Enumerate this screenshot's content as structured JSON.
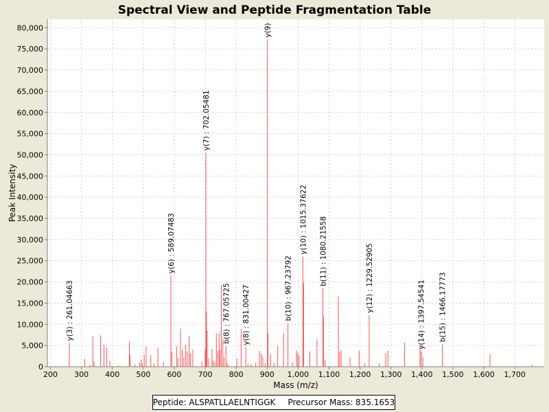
{
  "chart_data": {
    "type": "bar",
    "title": "Spectral View and Peptide Fragmentation Table",
    "xlabel": "Mass (m/z)",
    "ylabel": "Peak Intensity",
    "xlim": [
      190,
      1795
    ],
    "ylim": [
      0,
      82000
    ],
    "xticks": [
      200,
      300,
      400,
      500,
      600,
      700,
      800,
      900,
      1000,
      1100,
      1200,
      1300,
      1400,
      1500,
      1600,
      1700,
      1800
    ],
    "xtick_labels": [
      "200",
      "300",
      "400",
      "500",
      "600",
      "700",
      "800",
      "900",
      "1,000",
      "1,100",
      "1,200",
      "1,300",
      "1,400",
      "1,500",
      "1,600",
      "1,700",
      "1,800"
    ],
    "yticks": [
      0,
      5000,
      10000,
      15000,
      20000,
      25000,
      30000,
      35000,
      40000,
      45000,
      50000,
      55000,
      60000,
      65000,
      70000,
      75000,
      80000
    ],
    "ytick_labels": [
      "0",
      "5,000",
      "10,000",
      "15,000",
      "20,000",
      "25,000",
      "30,000",
      "35,000",
      "40,000",
      "45,000",
      "50,000",
      "55,000",
      "60,000",
      "65,000",
      "70,000",
      "75,000",
      "80,000"
    ],
    "grid": true,
    "peaks": [
      [
        261.0,
        5600
      ],
      [
        311.0,
        1800
      ],
      [
        328.0,
        400
      ],
      [
        337.0,
        7200
      ],
      [
        341.0,
        1200
      ],
      [
        362.0,
        7400
      ],
      [
        373.0,
        5200
      ],
      [
        382.0,
        4500
      ],
      [
        392.0,
        1400
      ],
      [
        420.0,
        300
      ],
      [
        455.0,
        5900
      ],
      [
        457.0,
        2800
      ],
      [
        473.0,
        500
      ],
      [
        488.0,
        1000
      ],
      [
        493.0,
        1700
      ],
      [
        497.0,
        800
      ],
      [
        503.0,
        2900
      ],
      [
        509.0,
        4800
      ],
      [
        524.0,
        2700
      ],
      [
        535.0,
        800
      ],
      [
        547.0,
        4500
      ],
      [
        565.0,
        1100
      ],
      [
        589.1,
        21500
      ],
      [
        592.0,
        3500
      ],
      [
        608.0,
        4800
      ],
      [
        612.0,
        2000
      ],
      [
        620.0,
        9000
      ],
      [
        626.0,
        4000
      ],
      [
        631.0,
        2200
      ],
      [
        637.0,
        5200
      ],
      [
        642.0,
        3600
      ],
      [
        648.0,
        7300
      ],
      [
        652.0,
        3200
      ],
      [
        660.0,
        4000
      ],
      [
        689.0,
        1200
      ],
      [
        700.0,
        4000
      ],
      [
        702.1,
        50500
      ],
      [
        704.0,
        13000
      ],
      [
        706.0,
        8500
      ],
      [
        711.0,
        2000
      ],
      [
        722.0,
        4200
      ],
      [
        726.0,
        1500
      ],
      [
        731.0,
        1000
      ],
      [
        736.0,
        7800
      ],
      [
        740.0,
        3700
      ],
      [
        745.0,
        8000
      ],
      [
        748.0,
        4000
      ],
      [
        752.0,
        19300
      ],
      [
        757.0,
        6600
      ],
      [
        761.0,
        2200
      ],
      [
        767.1,
        4900
      ],
      [
        771.0,
        900
      ],
      [
        775.0,
        400
      ],
      [
        802.0,
        1900
      ],
      [
        816.0,
        8900
      ],
      [
        831.0,
        4600
      ],
      [
        838.0,
        600
      ],
      [
        848.0,
        600
      ],
      [
        863.0,
        900
      ],
      [
        875.0,
        3800
      ],
      [
        881.0,
        3200
      ],
      [
        886.0,
        2200
      ],
      [
        893.0,
        800
      ],
      [
        901.0,
        77200
      ],
      [
        903.0,
        7800
      ],
      [
        911.0,
        3000
      ],
      [
        922.0,
        900
      ],
      [
        934.0,
        4900
      ],
      [
        953.0,
        7900
      ],
      [
        967.2,
        10300
      ],
      [
        983.0,
        1000
      ],
      [
        995.0,
        3800
      ],
      [
        999.0,
        3200
      ],
      [
        1003.0,
        2500
      ],
      [
        1015.4,
        26000
      ],
      [
        1018.0,
        19800
      ],
      [
        1038.0,
        3600
      ],
      [
        1061.0,
        6500
      ],
      [
        1080.2,
        18500
      ],
      [
        1082.0,
        11800
      ],
      [
        1087.0,
        1600
      ],
      [
        1130.0,
        16600
      ],
      [
        1134.0,
        3500
      ],
      [
        1139.0,
        3900
      ],
      [
        1168.0,
        2200
      ],
      [
        1197.0,
        3800
      ],
      [
        1215.0,
        800
      ],
      [
        1229.5,
        12200
      ],
      [
        1262.0,
        800
      ],
      [
        1283.0,
        3100
      ],
      [
        1290.0,
        3800
      ],
      [
        1344.0,
        5700
      ],
      [
        1394.0,
        5000
      ],
      [
        1397.5,
        3600
      ],
      [
        1403.0,
        2300
      ],
      [
        1466.2,
        5300
      ],
      [
        1620.0,
        3000
      ],
      [
        1755.0,
        500
      ]
    ],
    "annotations": [
      {
        "text": "y(3) : 261.04663",
        "mz": 261.0
      },
      {
        "text": "y(6) : 589.07483",
        "mz": 589.1
      },
      {
        "text": "y(7) : 702.05481",
        "mz": 702.1
      },
      {
        "text": "b(8) : 767.05725",
        "mz": 767.1
      },
      {
        "text": "y(8) : 831.00427",
        "mz": 831.0
      },
      {
        "text": "y(9)",
        "mz": 901.0
      },
      {
        "text": "b(10) : 967.23792",
        "mz": 967.2
      },
      {
        "text": "y(10) : 1015.37622",
        "mz": 1015.4
      },
      {
        "text": "b(11) : 1080.21558",
        "mz": 1080.2
      },
      {
        "text": "y(12) : 1229.52905",
        "mz": 1229.5
      },
      {
        "text": "y(14) : 1397.54541",
        "mz": 1397.5
      },
      {
        "text": "b(15) : 1466.17773",
        "mz": 1466.2
      }
    ],
    "colors": {
      "peak": "#ff5050",
      "plot_bg": "#ffffff",
      "page_bg": "#ece9d8"
    }
  },
  "footer": {
    "peptide": "Peptide: ALSPATLLAELNTIGGK",
    "precursor": "Precursor Mass: 835.1653"
  }
}
